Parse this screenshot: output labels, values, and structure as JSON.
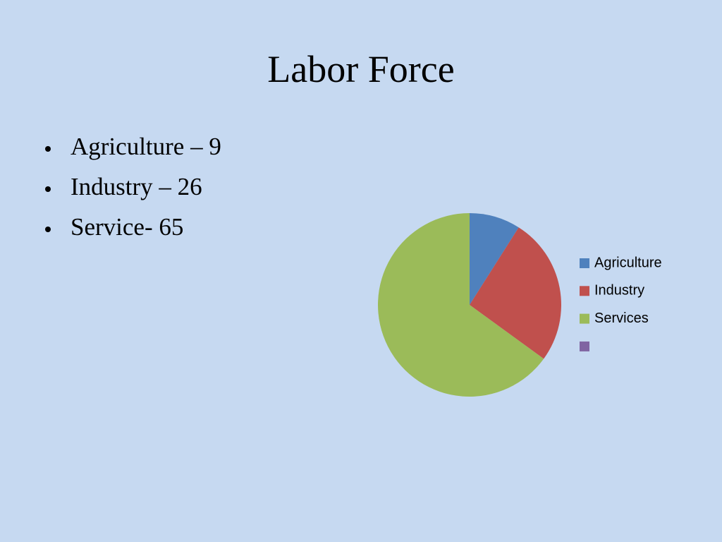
{
  "title": "Labor Force",
  "bullets": [
    "Agriculture – 9",
    "Industry – 26",
    "Service- 65"
  ],
  "chart_data": {
    "type": "pie",
    "categories": [
      "Agriculture",
      "Industry",
      "Services",
      null
    ],
    "values": [
      9,
      26,
      65,
      0
    ],
    "colors": [
      "#4f81bd",
      "#c0504d",
      "#9bbb59",
      "#8064a2"
    ]
  }
}
